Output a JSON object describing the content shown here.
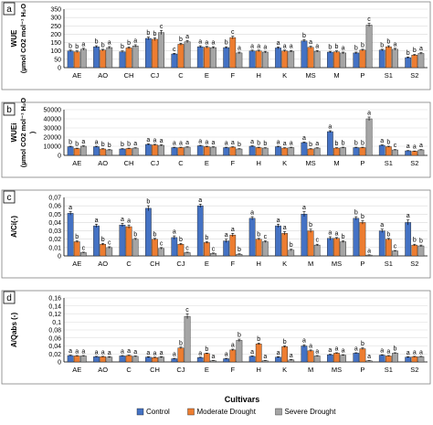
{
  "figure": {
    "xlabel": "Cultivars",
    "legend": [
      {
        "name": "Control",
        "color": "#4472c4"
      },
      {
        "name": "Moderate Drought",
        "color": "#ed7d31"
      },
      {
        "name": "Severe Drought",
        "color": "#a5a5a5"
      }
    ]
  },
  "chart_data": [
    {
      "type": "bar",
      "panel_label": "a",
      "ylabel": "WUE",
      "ylabel2": "(µmol CO2 mol⁻¹ H₂O",
      "ylim": [
        0,
        350
      ],
      "yticks": [
        0,
        50,
        100,
        150,
        200,
        250,
        300,
        350
      ],
      "categories": [
        "AE",
        "AO",
        "CH",
        "CJ",
        "C",
        "E",
        "F",
        "H",
        "K",
        "MS",
        "M",
        "P",
        "S1",
        "S2"
      ],
      "series": [
        {
          "name": "Control",
          "values": [
            100,
            125,
            95,
            175,
            82,
            125,
            120,
            100,
            118,
            160,
            93,
            88,
            105,
            60
          ],
          "errors": [
            5,
            6,
            5,
            8,
            4,
            6,
            5,
            5,
            6,
            7,
            5,
            5,
            5,
            4
          ]
        },
        {
          "name": "Moderate Drought",
          "values": [
            95,
            105,
            118,
            170,
            140,
            122,
            180,
            100,
            100,
            122,
            95,
            105,
            125,
            75
          ],
          "errors": [
            5,
            5,
            6,
            8,
            6,
            5,
            8,
            5,
            5,
            6,
            5,
            5,
            6,
            4
          ]
        },
        {
          "name": "Severe Drought",
          "values": [
            110,
            120,
            130,
            210,
            155,
            120,
            88,
            93,
            98,
            98,
            88,
            255,
            110,
            85
          ],
          "errors": [
            6,
            6,
            7,
            12,
            7,
            5,
            5,
            5,
            5,
            5,
            5,
            10,
            6,
            5
          ]
        }
      ],
      "annotations": [
        [
          "b",
          "b",
          "a"
        ],
        [
          "b",
          "b",
          "a"
        ],
        [
          "b",
          "b",
          "a"
        ],
        [
          "b",
          "b",
          "c"
        ],
        [
          "c",
          "b",
          "a"
        ],
        [
          "a",
          "a",
          "a"
        ],
        [
          "b",
          "c",
          "a"
        ],
        [
          "a",
          "a",
          "a"
        ],
        [
          "a",
          "a",
          "a"
        ],
        [
          "b",
          "a",
          "a"
        ],
        [
          "b",
          "b",
          "a"
        ],
        [
          "b",
          "b",
          "c"
        ],
        [
          "b",
          "b",
          "a"
        ],
        [
          "b",
          "b",
          "a"
        ]
      ]
    },
    {
      "type": "bar",
      "panel_label": "b",
      "ylabel": "WUEi",
      "ylabel2": "(µmol CO2 mol⁻¹ H₂O",
      "ylabel3": ")",
      "ylim": [
        0,
        50000
      ],
      "yticks": [
        0,
        10000,
        20000,
        30000,
        40000,
        50000
      ],
      "categories": [
        "AE",
        "AO",
        "CH",
        "CJ",
        "C",
        "E",
        "F",
        "H",
        "K",
        "MS",
        "M",
        "P",
        "S1",
        "S2"
      ],
      "series": [
        {
          "name": "Control",
          "values": [
            9500,
            9500,
            7000,
            12000,
            8500,
            10500,
            8500,
            10000,
            9500,
            14000,
            26000,
            8500,
            11000,
            5000
          ],
          "errors": [
            500,
            500,
            400,
            600,
            400,
            500,
            400,
            500,
            500,
            600,
            1000,
            400,
            500,
            300
          ]
        },
        {
          "name": "Moderate Drought",
          "values": [
            7500,
            7000,
            7500,
            11500,
            8500,
            9500,
            9000,
            8500,
            8000,
            7000,
            8000,
            8500,
            9500,
            4500
          ],
          "errors": [
            400,
            400,
            400,
            600,
            400,
            500,
            400,
            400,
            400,
            400,
            400,
            400,
            500,
            300
          ]
        },
        {
          "name": "Severe Drought",
          "values": [
            10000,
            6000,
            8000,
            11000,
            9000,
            9000,
            7000,
            8000,
            8500,
            8000,
            8500,
            40000,
            6000,
            6000
          ],
          "errors": [
            500,
            400,
            400,
            600,
            400,
            400,
            400,
            400,
            400,
            400,
            400,
            2000,
            400,
            400
          ]
        }
      ],
      "annotations": [
        [
          "b",
          "b",
          "a"
        ],
        [
          "a",
          "b",
          "b"
        ],
        [
          "b",
          "b",
          "a"
        ],
        [
          "a",
          "a",
          "a"
        ],
        [
          "a",
          "a",
          "a"
        ],
        [
          "a",
          "a",
          "a"
        ],
        [
          "a",
          "a",
          "b"
        ],
        [
          "a",
          "b",
          "b"
        ],
        [
          "a",
          "a",
          "a"
        ],
        [
          "a",
          "b",
          "a"
        ],
        [
          "a",
          "b",
          "b"
        ],
        [
          "b",
          "b",
          "a"
        ],
        [
          "a",
          "b",
          "c"
        ],
        [
          "a",
          "a",
          "a"
        ]
      ]
    },
    {
      "type": "bar",
      "panel_label": "c",
      "ylabel": "A/Ci(-)",
      "ylim": [
        0,
        0.07
      ],
      "yticks": [
        0,
        0.01,
        0.02,
        0.03,
        0.04,
        0.05,
        0.06,
        0.07
      ],
      "yticklabels": [
        "0",
        "0,01",
        "0,02",
        "0,03",
        "0,04",
        "0,05",
        "0,06",
        "0,07"
      ],
      "categories": [
        "AE",
        "AO",
        "C",
        "CH",
        "CJ",
        "E",
        "F",
        "H",
        "K",
        "M",
        "MS",
        "P",
        "S1",
        "S2"
      ],
      "series": [
        {
          "name": "Control",
          "values": [
            0.051,
            0.036,
            0.037,
            0.057,
            0.022,
            0.06,
            0.018,
            0.045,
            0.036,
            0.05,
            0.021,
            0.045,
            0.03,
            0.04
          ],
          "errors": [
            0.002,
            0.002,
            0.002,
            0.003,
            0.002,
            0.002,
            0.002,
            0.002,
            0.002,
            0.003,
            0.002,
            0.002,
            0.002,
            0.003
          ]
        },
        {
          "name": "Moderate Drought",
          "values": [
            0.017,
            0.014,
            0.035,
            0.02,
            0.014,
            0.016,
            0.025,
            0.02,
            0.027,
            0.03,
            0.021,
            0.04,
            0.02,
            0.013
          ],
          "errors": [
            0.001,
            0.001,
            0.002,
            0.001,
            0.001,
            0.001,
            0.002,
            0.001,
            0.002,
            0.002,
            0.001,
            0.002,
            0.001,
            0.001
          ]
        },
        {
          "name": "Severe Drought",
          "values": [
            0.004,
            0.01,
            0.02,
            0.009,
            0.004,
            0.003,
            0.002,
            0.017,
            0.007,
            0.013,
            0.017,
            0.001,
            0.006,
            0.012
          ],
          "errors": [
            0.0005,
            0.001,
            0.001,
            0.001,
            0.0005,
            0.0005,
            0.0005,
            0.001,
            0.001,
            0.001,
            0.001,
            0.0003,
            0.0005,
            0.001
          ]
        }
      ],
      "annotations": [
        [
          "a",
          "b",
          "c"
        ],
        [
          "a",
          "b",
          "c"
        ],
        [
          "a",
          "a",
          "b"
        ],
        [
          "b",
          "b",
          "c"
        ],
        [
          "a",
          "b",
          "c"
        ],
        [
          "a",
          "b",
          "c"
        ],
        [
          "a",
          "a",
          "b"
        ],
        [
          "a",
          "b",
          "c"
        ],
        [
          "a",
          "a",
          "b"
        ],
        [
          "a",
          "b",
          "c"
        ],
        [
          "a",
          "a",
          "b"
        ],
        [
          "b",
          "b",
          "a"
        ],
        [
          "a",
          "b",
          "c"
        ],
        [
          "a",
          "b",
          "b"
        ]
      ]
    },
    {
      "type": "bar",
      "panel_label": "d",
      "ylabel": "A/Qabs (-)",
      "ylim": [
        0,
        0.16
      ],
      "yticks": [
        0,
        0.02,
        0.04,
        0.06,
        0.08,
        0.1,
        0.12,
        0.14,
        0.16
      ],
      "yticklabels": [
        "0",
        "0,02",
        "0,04",
        "0,06",
        "0,08",
        "0,1",
        "0,12",
        "0,14",
        "0,16"
      ],
      "categories": [
        "AE",
        "AO",
        "C",
        "CH",
        "CJ",
        "E",
        "F",
        "H",
        "K",
        "M",
        "MS",
        "P",
        "S1",
        "S2"
      ],
      "series": [
        {
          "name": "Control",
          "values": [
            0.016,
            0.013,
            0.015,
            0.012,
            0.008,
            0.011,
            0.008,
            0.014,
            0.012,
            0.04,
            0.018,
            0.022,
            0.017,
            0.012
          ],
          "errors": [
            0.001,
            0.001,
            0.001,
            0.001,
            0.001,
            0.001,
            0.001,
            0.001,
            0.001,
            0.003,
            0.001,
            0.001,
            0.001,
            0.001
          ]
        },
        {
          "name": "Moderate Drought",
          "values": [
            0.015,
            0.013,
            0.016,
            0.011,
            0.035,
            0.021,
            0.03,
            0.045,
            0.038,
            0.028,
            0.022,
            0.033,
            0.015,
            0.013
          ],
          "errors": [
            0.001,
            0.001,
            0.001,
            0.001,
            0.002,
            0.001,
            0.002,
            0.002,
            0.002,
            0.002,
            0.001,
            0.002,
            0.001,
            0.001
          ]
        },
        {
          "name": "Severe Drought",
          "values": [
            0.015,
            0.012,
            0.014,
            0.012,
            0.114,
            0.003,
            0.054,
            0.003,
            0.005,
            0.015,
            0.017,
            0.003,
            0.022,
            0.013
          ],
          "errors": [
            0.001,
            0.001,
            0.001,
            0.001,
            0.006,
            0.0005,
            0.003,
            0.0005,
            0.001,
            0.001,
            0.001,
            0.0005,
            0.001,
            0.001
          ]
        }
      ],
      "annotations": [
        [
          "a",
          "a",
          "a"
        ],
        [
          "a",
          "a",
          "a"
        ],
        [
          "a",
          "a",
          "a"
        ],
        [
          "a",
          "a",
          "a"
        ],
        [
          "a",
          "b",
          "c"
        ],
        [
          "a",
          "b",
          "a"
        ],
        [
          "a",
          "a",
          "b"
        ],
        [
          "a",
          "b",
          "a"
        ],
        [
          "a",
          "b",
          "a"
        ],
        [
          "a",
          "a",
          "a"
        ],
        [
          "a",
          "a",
          "a"
        ],
        [
          "a",
          "b",
          "a"
        ],
        [
          "a",
          "a",
          "b"
        ],
        [
          "a",
          "a",
          "a"
        ]
      ]
    }
  ]
}
